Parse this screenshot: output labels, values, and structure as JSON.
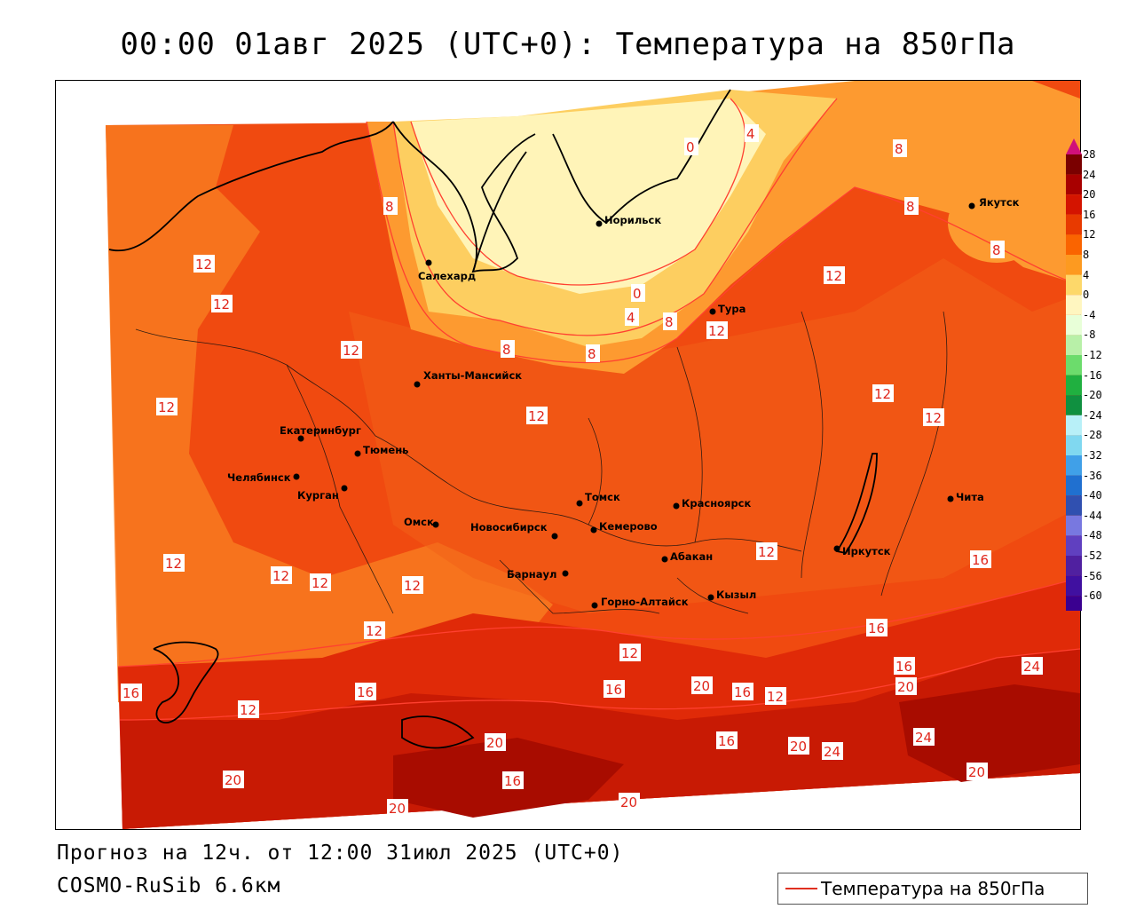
{
  "title": "00:00 01авг 2025 (UTC+0): Температура на 850гПа",
  "footer": {
    "forecast": "Прогноз на 12ч. от 12:00 31июл 2025 (UTC+0)",
    "model": "COSMO-RuSib 6.6км"
  },
  "legend": {
    "label": "Температура на 850гПа",
    "line_color": "#e03020"
  },
  "colorbar": {
    "labels": [
      "28",
      "24",
      "20",
      "16",
      "12",
      "8",
      "4",
      "0",
      "-4",
      "-8",
      "-12",
      "-16",
      "-20",
      "-24",
      "-28",
      "-32",
      "-36",
      "-40",
      "-44",
      "-48",
      "-52",
      "-56",
      "-60"
    ],
    "colors": [
      "#7a0000",
      "#a80000",
      "#d41400",
      "#e83a00",
      "#fa6400",
      "#fd9a20",
      "#fdd86a",
      "#fff6c0",
      "#e8ffd8",
      "#b8f0a8",
      "#6cdc6c",
      "#20b040",
      "#109040",
      "#b8f0f8",
      "#80d8f0",
      "#40a0e8",
      "#2070d0",
      "#3050b0",
      "#7878e0",
      "#6040c0",
      "#5020a0",
      "#4010a0",
      "#3a0090"
    ]
  },
  "cities": [
    {
      "name": "Салехард",
      "id": "salekhard"
    },
    {
      "name": "Норильск",
      "id": "norilsk"
    },
    {
      "name": "Якутск",
      "id": "yakutsk"
    },
    {
      "name": "Тура",
      "id": "tura"
    },
    {
      "name": "Ханты-Мансийск",
      "id": "khanty"
    },
    {
      "name": "Екатеринбург",
      "id": "ekb"
    },
    {
      "name": "Тюмень",
      "id": "tyumen"
    },
    {
      "name": "Челябинск",
      "id": "chelyabinsk"
    },
    {
      "name": "Курган",
      "id": "kurgan"
    },
    {
      "name": "Омск",
      "id": "omsk"
    },
    {
      "name": "Новосибирск",
      "id": "novosibirsk"
    },
    {
      "name": "Томск",
      "id": "tomsk"
    },
    {
      "name": "Кемерово",
      "id": "kemerovo"
    },
    {
      "name": "Красноярск",
      "id": "krasnoyarsk"
    },
    {
      "name": "Барнаул",
      "id": "barnaul"
    },
    {
      "name": "Абакан",
      "id": "abakan"
    },
    {
      "name": "Горно-Алтайск",
      "id": "gorno"
    },
    {
      "name": "Кызыл",
      "id": "kyzyl"
    },
    {
      "name": "Иркутск",
      "id": "irkutsk"
    },
    {
      "name": "Чита",
      "id": "chita"
    }
  ],
  "isotherm_labels": [
    "0",
    "4",
    "8",
    "12",
    "16",
    "20",
    "24"
  ]
}
